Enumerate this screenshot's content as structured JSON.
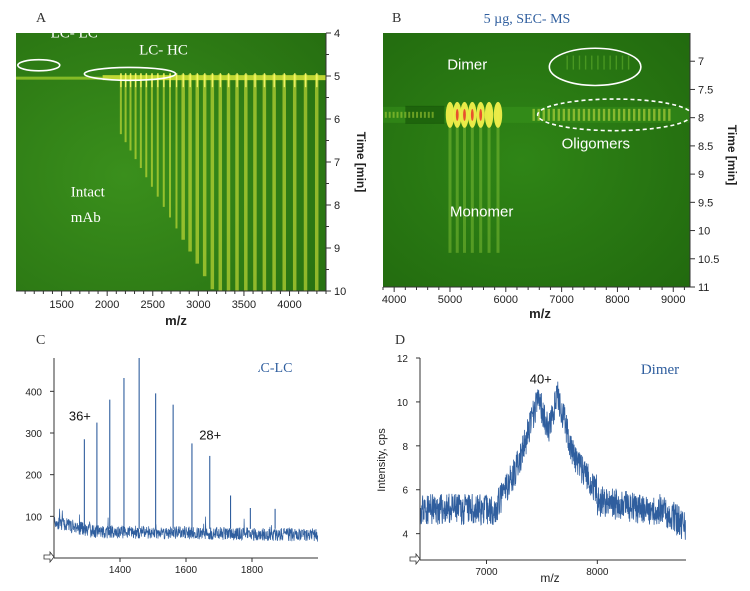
{
  "panels": {
    "A": {
      "label": "A",
      "chart_data": {
        "type": "heatmap",
        "xlabel": "m/z",
        "ylabel": "Time [min]",
        "xlim": [
          1000,
          4400
        ],
        "ylim": [
          4,
          10
        ],
        "x_ticks": [
          1500,
          2000,
          2500,
          3000,
          3500,
          4000
        ],
        "y_ticks": [
          4,
          5,
          6,
          7,
          8,
          9,
          10
        ],
        "y_axis_side": "right",
        "elution_time": 5.05,
        "annotations": [
          {
            "text": "LC- LC",
            "x": 1380,
            "y": 4.1
          },
          {
            "text": "LC- HC",
            "x": 2350,
            "y": 4.5
          },
          {
            "text": "Intact",
            "x": 1600,
            "y": 7.8
          },
          {
            "text": "mAb",
            "x": 1600,
            "y": 8.4
          }
        ],
        "ellipses": [
          {
            "cx": 1250,
            "cy": 4.75,
            "rx": 230,
            "ry": 0.13
          },
          {
            "cx": 2250,
            "cy": 4.95,
            "rx": 500,
            "ry": 0.15
          }
        ]
      }
    },
    "B": {
      "label": "B",
      "title": "5 µg, SEC- MS",
      "chart_data": {
        "type": "heatmap",
        "xlabel": "m/z",
        "ylabel": "Time [min]",
        "xlim": [
          3800,
          9300
        ],
        "ylim": [
          6.5,
          11
        ],
        "x_ticks": [
          4000,
          5000,
          6000,
          7000,
          8000,
          9000
        ],
        "y_ticks": [
          "7",
          "7.5",
          "8",
          "8.5",
          "9",
          "9.5",
          "10",
          "10.5",
          "11"
        ],
        "y_axis_side": "right",
        "elution_time": 7.95,
        "annotations": [
          {
            "text": "Dimer",
            "x": 4950,
            "y": 7.15
          },
          {
            "text": "Oligomers",
            "x": 7000,
            "y": 8.55
          },
          {
            "text": "Monomer",
            "x": 5000,
            "y": 9.75
          }
        ],
        "ellipses": [
          {
            "cx": 7600,
            "cy": 7.1,
            "rx": 820,
            "ry": 0.33,
            "dashed": false
          },
          {
            "cx": 7950,
            "cy": 7.95,
            "rx": 1380,
            "ry": 0.28,
            "dashed": true
          }
        ]
      }
    },
    "C": {
      "label": "C",
      "title": "LC-LC",
      "chart_data": {
        "type": "line",
        "xlim": [
          1200,
          2000
        ],
        "ylim": [
          0,
          480
        ],
        "x_ticks": [
          1400,
          1600,
          1800
        ],
        "y_ticks": [
          100,
          200,
          300,
          400
        ],
        "baseline": 65,
        "noise": 16,
        "peaks": [
          {
            "x": 1292,
            "y": 285
          },
          {
            "x": 1330,
            "y": 325
          },
          {
            "x": 1369,
            "y": 380
          },
          {
            "x": 1412,
            "y": 432
          },
          {
            "x": 1458,
            "y": 482
          },
          {
            "x": 1508,
            "y": 395
          },
          {
            "x": 1561,
            "y": 368
          },
          {
            "x": 1618,
            "y": 275
          },
          {
            "x": 1672,
            "y": 245
          },
          {
            "x": 1735,
            "y": 150
          },
          {
            "x": 1795,
            "y": 120
          },
          {
            "x": 1870,
            "y": 118
          }
        ],
        "annotations": [
          {
            "text": "36+",
            "x": 1245,
            "y": 330
          },
          {
            "text": "28+",
            "x": 1640,
            "y": 285
          }
        ]
      }
    },
    "D": {
      "label": "D",
      "title": "Dimer",
      "chart_data": {
        "type": "line",
        "xlabel": "m/z",
        "ylabel": "Intensity, cps",
        "xlim": [
          6400,
          8800
        ],
        "ylim": [
          2.8,
          12
        ],
        "x_ticks": [
          7000,
          8000
        ],
        "y_ticks": [
          4,
          6,
          8,
          10,
          12
        ],
        "baseline": 5.1,
        "noise": 0.65,
        "envelope": [
          {
            "x": 7100,
            "y": 5.3
          },
          {
            "x": 7300,
            "y": 7.3
          },
          {
            "x": 7470,
            "y": 10.2
          },
          {
            "x": 7560,
            "y": 8.7
          },
          {
            "x": 7640,
            "y": 10.3
          },
          {
            "x": 7800,
            "y": 7.3
          },
          {
            "x": 8000,
            "y": 6.0
          }
        ],
        "annotations": [
          {
            "text": "40+",
            "x": 7390,
            "y": 10.85
          }
        ]
      }
    }
  },
  "colors": {
    "heatmap_bg": "#2a7a12",
    "heatmap_dark": "#1c5c0c",
    "band_yellow": "#f0f040",
    "spectrum_line": "#2f5e9e",
    "title_blue": "#2f5e9e",
    "axis": "#333333"
  }
}
